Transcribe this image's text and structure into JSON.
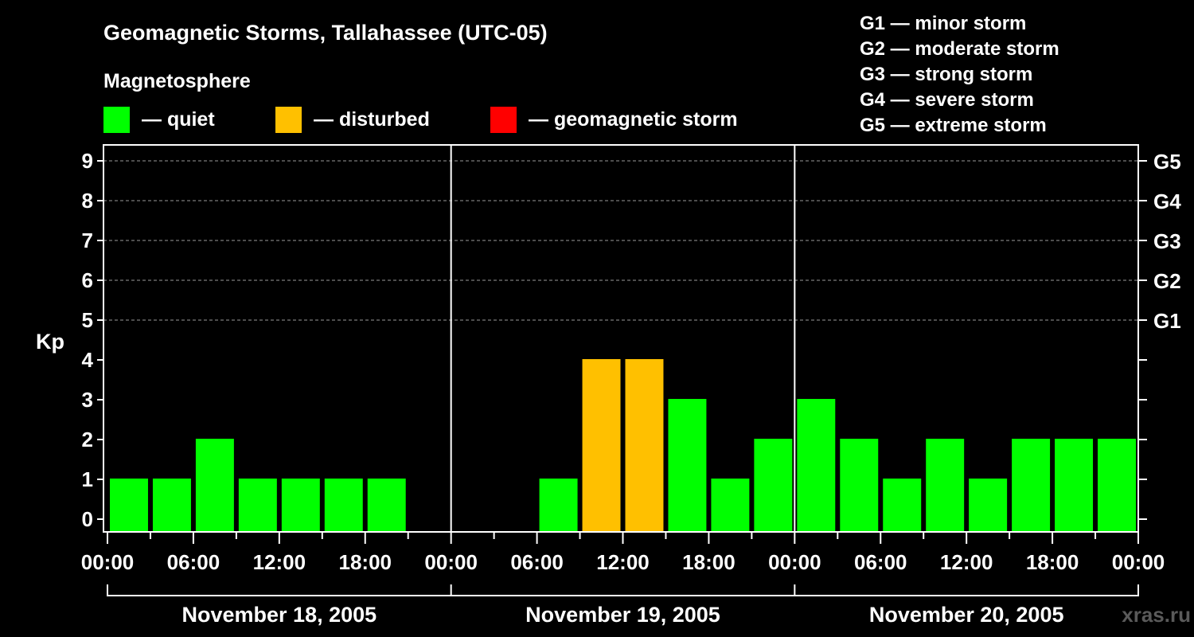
{
  "chart_data": {
    "type": "bar",
    "title": "Geomagnetic Storms, Tallahassee (UTC-05)",
    "ylabel": "Kp",
    "ylim": [
      0,
      9
    ],
    "yticks": [
      0,
      1,
      2,
      3,
      4,
      5,
      6,
      7,
      8,
      9
    ],
    "x_hours": [
      1.5,
      4.5,
      7.5,
      10.5,
      13.5,
      16.5,
      19.5,
      22.5,
      25.5,
      28.5,
      31.5,
      34.5,
      37.5,
      40.5,
      43.5,
      46.5,
      49.5,
      52.5,
      55.5,
      58.5,
      61.5,
      64.5,
      67.5,
      70.5
    ],
    "values": [
      1,
      1,
      2,
      1,
      1,
      1,
      1,
      0,
      0,
      0,
      1,
      4,
      4,
      3,
      1,
      2,
      3,
      2,
      1,
      2,
      1,
      2,
      2,
      2
    ],
    "xlim_hours": [
      0,
      72
    ],
    "xtick_labels": [
      "00:00",
      "06:00",
      "12:00",
      "18:00",
      "00:00",
      "06:00",
      "12:00",
      "18:00",
      "00:00",
      "06:00",
      "12:00",
      "18:00",
      "00:00"
    ],
    "day_labels": [
      "November 18, 2005",
      "November 19, 2005",
      "November 20, 2005"
    ],
    "storm_levels": [
      {
        "kp": 5,
        "label": "G1"
      },
      {
        "kp": 6,
        "label": "G2"
      },
      {
        "kp": 7,
        "label": "G3"
      },
      {
        "kp": 8,
        "label": "G4"
      },
      {
        "kp": 9,
        "label": "G5"
      }
    ],
    "grid": true
  },
  "legend": {
    "heading": "Magnetosphere",
    "items": [
      {
        "label": "— quiet",
        "color": "#00ff00"
      },
      {
        "label": "— disturbed",
        "color": "#ffc000"
      },
      {
        "label": "— geomagnetic storm",
        "color": "#ff0000"
      }
    ]
  },
  "storm_scale": [
    "G1 — minor storm",
    "G2 — moderate storm",
    "G3 — strong storm",
    "G4 — severe storm",
    "G5 — extreme storm"
  ],
  "colors": {
    "quiet": "#00ff00",
    "disturbed": "#ffc000",
    "storm": "#ff0000"
  },
  "watermark": "xras.ru"
}
